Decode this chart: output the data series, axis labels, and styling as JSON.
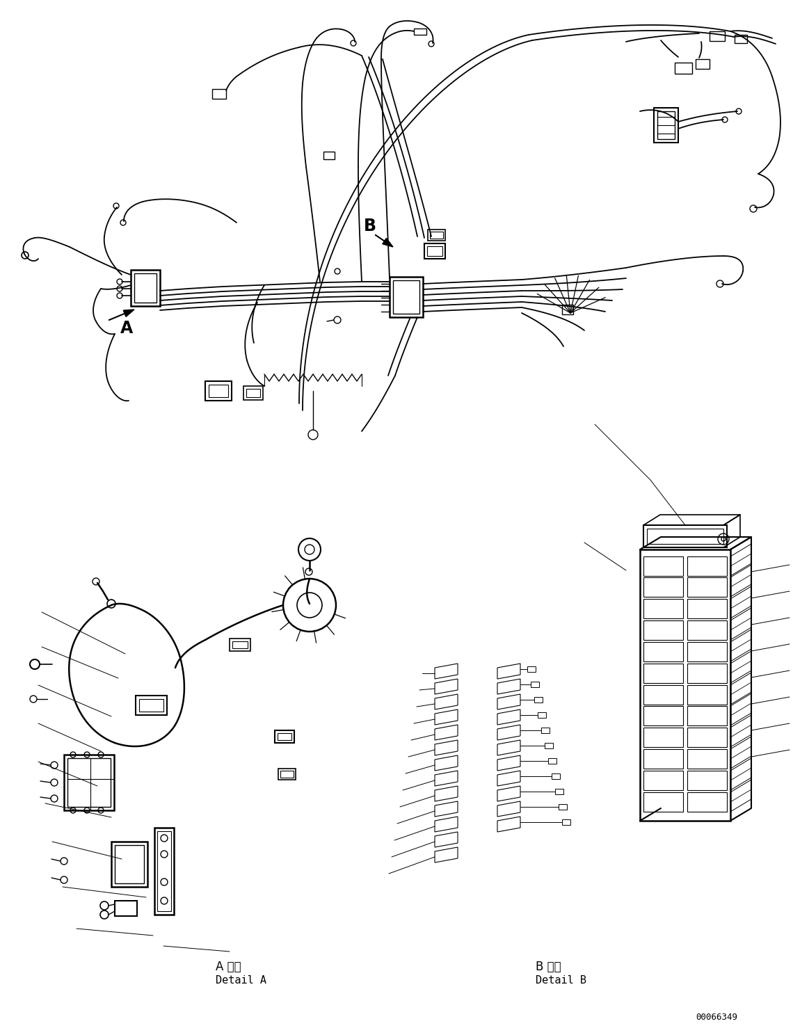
{
  "background_color": "#ffffff",
  "fig_width": 11.63,
  "fig_height": 14.88,
  "dpi": 100,
  "line_color": "#000000",
  "label_A": "A",
  "label_B": "B",
  "detail_A_japanese": "A 詳細",
  "detail_A_english": "Detail A",
  "detail_B_japanese": "B 詳細",
  "detail_B_english": "Detail B",
  "part_number": "00066349"
}
